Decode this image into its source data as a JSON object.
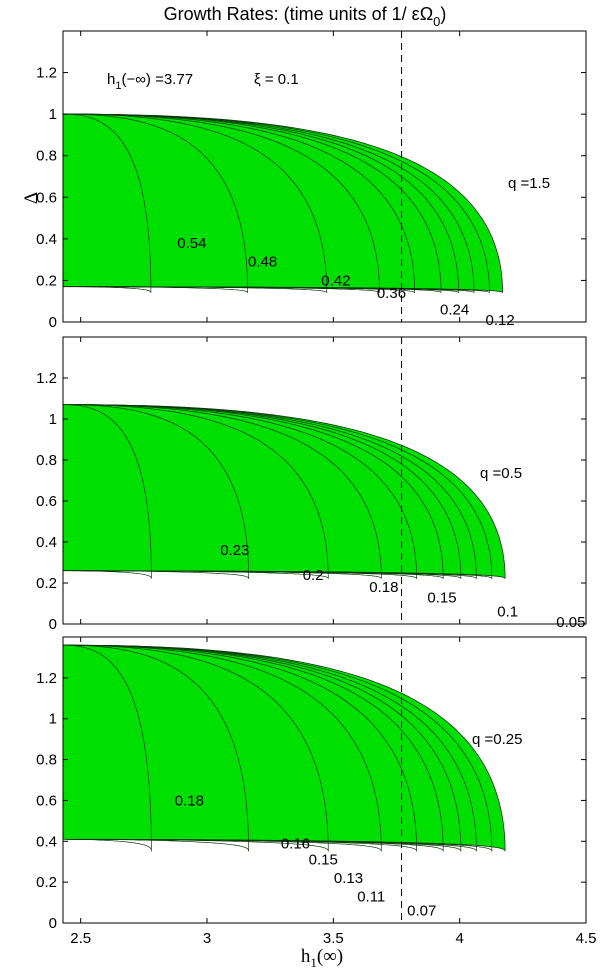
{
  "figure": {
    "title_main": "Growth Rates: (time units of 1/ εΩ",
    "title_sub": "0",
    "title_close": ")",
    "xlabel_main": "h",
    "xlabel_sub": "1",
    "xlabel_arg": "(∞)",
    "ylabel": "Δ",
    "annot_h_main": "h",
    "annot_h_sub": "1",
    "annot_h_rest": "(−∞) =3.77",
    "annot_xi": "ξ = 0.1"
  },
  "colors": {
    "fill": "#00e000",
    "contour": "#0a3a0a",
    "axis": "#000000"
  },
  "chart_data": [
    {
      "type": "contour",
      "panel_label": "q =1.5",
      "xlim": [
        2.43,
        4.5
      ],
      "ylim": [
        0,
        1.4
      ],
      "yticks": [
        "0",
        "0.2",
        "0.4",
        "0.6",
        "0.8",
        "1",
        "1.2"
      ],
      "xticks": [],
      "dashed_x": 3.77,
      "region": {
        "x0": 2.43,
        "yl": 0.17,
        "yu": 1.0,
        "tip_x": 4.17,
        "tip_y": 0.14
      },
      "contour_levels": [
        "0.54",
        "0.48",
        "0.42",
        "0.36",
        "0.24",
        "0.12"
      ],
      "contour_labels": [
        {
          "text": "0.54",
          "x": 2.94,
          "y": 0.38
        },
        {
          "text": "0.48",
          "x": 3.22,
          "y": 0.29
        },
        {
          "text": "0.42",
          "x": 3.51,
          "y": 0.2
        },
        {
          "text": "0.36",
          "x": 3.73,
          "y": 0.14
        },
        {
          "text": "0.24",
          "x": 3.98,
          "y": 0.06
        },
        {
          "text": "0.12",
          "x": 4.16,
          "y": 0.01
        }
      ]
    },
    {
      "type": "contour",
      "panel_label": "q =0.5",
      "xlim": [
        2.43,
        4.5
      ],
      "ylim": [
        0,
        1.4
      ],
      "yticks": [
        "0",
        "0.2",
        "0.4",
        "0.6",
        "0.8",
        "1",
        "1.2"
      ],
      "xticks": [],
      "dashed_x": 3.77,
      "region": {
        "x0": 2.43,
        "yl": 0.26,
        "yu": 1.07,
        "tip_x": 4.18,
        "tip_y": 0.22
      },
      "contour_levels": [
        "0.23",
        "0.2",
        "0.18",
        "0.15",
        "0.1",
        "0.05"
      ],
      "contour_labels": [
        {
          "text": "0.23",
          "x": 3.11,
          "y": 0.36
        },
        {
          "text": "0.2",
          "x": 3.42,
          "y": 0.24
        },
        {
          "text": "0.18",
          "x": 3.7,
          "y": 0.18
        },
        {
          "text": "0.15",
          "x": 3.93,
          "y": 0.13
        },
        {
          "text": "0.1",
          "x": 4.19,
          "y": 0.06
        },
        {
          "text": "0.05",
          "x": 4.44,
          "y": 0.01
        }
      ]
    },
    {
      "type": "contour",
      "panel_label": "q =0.25",
      "xlim": [
        2.43,
        4.5
      ],
      "ylim": [
        0,
        1.4
      ],
      "yticks": [
        "0",
        "0.2",
        "0.4",
        "0.6",
        "0.8",
        "1",
        "1.2"
      ],
      "xticks": [
        "2.5",
        "3",
        "3.5",
        "4",
        "4.5"
      ],
      "dashed_x": 3.77,
      "region": {
        "x0": 2.43,
        "yl": 0.41,
        "yu": 1.36,
        "tip_x": 4.18,
        "tip_y": 0.35
      },
      "contour_levels": [
        "0.18",
        "0.16",
        "0.15",
        "0.13",
        "0.11",
        "0.07"
      ],
      "contour_labels": [
        {
          "text": "0.18",
          "x": 2.93,
          "y": 0.6
        },
        {
          "text": "0.16",
          "x": 3.35,
          "y": 0.39
        },
        {
          "text": "0.15",
          "x": 3.46,
          "y": 0.31
        },
        {
          "text": "0.13",
          "x": 3.56,
          "y": 0.22
        },
        {
          "text": "0.11",
          "x": 3.65,
          "y": 0.13
        },
        {
          "text": "0.07",
          "x": 3.85,
          "y": 0.06
        }
      ]
    }
  ]
}
